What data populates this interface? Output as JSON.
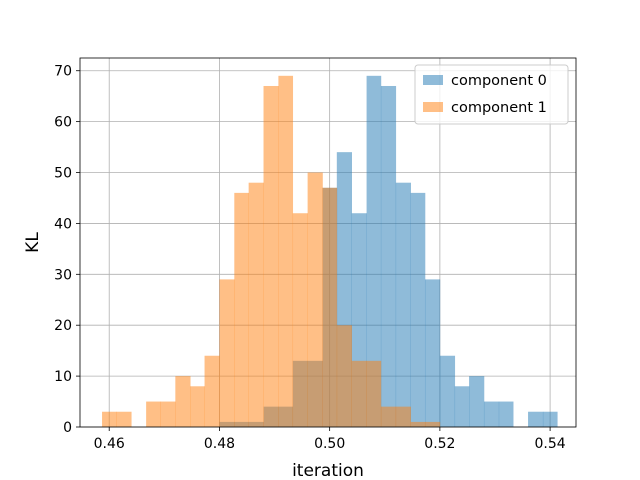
{
  "chart_data": {
    "type": "histogram",
    "xlabel": "iteration",
    "ylabel": "KL",
    "xlim": [
      0.4547,
      0.5447
    ],
    "ylim": [
      0,
      72.5
    ],
    "xticks": [
      "0.46",
      "0.48",
      "0.50",
      "0.52",
      "0.54"
    ],
    "xtick_values": [
      0.46,
      0.48,
      0.5,
      0.52,
      0.54
    ],
    "yticks": [
      "0",
      "10",
      "20",
      "30",
      "40",
      "50",
      "60",
      "70"
    ],
    "ytick_values": [
      0,
      10,
      20,
      30,
      40,
      50,
      60,
      70
    ],
    "grid": true,
    "legend_position": "top-right",
    "series": [
      {
        "name": "component 0",
        "color": "#1f77b4",
        "alpha": 0.5,
        "bins": [
          [
            0.48,
            0.4827,
            1
          ],
          [
            0.4827,
            0.4853,
            1
          ],
          [
            0.4853,
            0.488,
            1
          ],
          [
            0.488,
            0.4907,
            4
          ],
          [
            0.4907,
            0.4933,
            4
          ],
          [
            0.4933,
            0.496,
            13
          ],
          [
            0.496,
            0.4987,
            13
          ],
          [
            0.4987,
            0.5013,
            47
          ],
          [
            0.5013,
            0.504,
            54
          ],
          [
            0.504,
            0.5067,
            42
          ],
          [
            0.5067,
            0.5093,
            69
          ],
          [
            0.5093,
            0.512,
            67
          ],
          [
            0.512,
            0.5147,
            48
          ],
          [
            0.5147,
            0.5173,
            46
          ],
          [
            0.5173,
            0.52,
            29
          ],
          [
            0.52,
            0.5227,
            14
          ],
          [
            0.5227,
            0.5253,
            8
          ],
          [
            0.5253,
            0.528,
            10
          ],
          [
            0.528,
            0.5307,
            5
          ],
          [
            0.5307,
            0.5333,
            5
          ],
          [
            0.5333,
            0.536,
            0
          ],
          [
            0.536,
            0.5387,
            3
          ],
          [
            0.5387,
            0.5413,
            3
          ]
        ]
      },
      {
        "name": "component 1",
        "color": "#ff7f0e",
        "alpha": 0.5,
        "bins": [
          [
            0.4587,
            0.4613,
            3
          ],
          [
            0.4613,
            0.464,
            3
          ],
          [
            0.464,
            0.4667,
            0
          ],
          [
            0.4667,
            0.4693,
            5
          ],
          [
            0.4693,
            0.472,
            5
          ],
          [
            0.472,
            0.4747,
            10
          ],
          [
            0.4747,
            0.4773,
            8
          ],
          [
            0.4773,
            0.48,
            14
          ],
          [
            0.48,
            0.4827,
            29
          ],
          [
            0.4827,
            0.4853,
            46
          ],
          [
            0.4853,
            0.488,
            48
          ],
          [
            0.488,
            0.4907,
            67
          ],
          [
            0.4907,
            0.4933,
            69
          ],
          [
            0.4933,
            0.496,
            42
          ],
          [
            0.496,
            0.4987,
            50
          ],
          [
            0.4987,
            0.5013,
            47
          ],
          [
            0.5013,
            0.504,
            20
          ],
          [
            0.504,
            0.5067,
            13
          ],
          [
            0.5067,
            0.5093,
            13
          ],
          [
            0.5093,
            0.512,
            4
          ],
          [
            0.512,
            0.5147,
            4
          ],
          [
            0.5147,
            0.5173,
            1
          ],
          [
            0.5173,
            0.52,
            1
          ]
        ]
      }
    ]
  }
}
